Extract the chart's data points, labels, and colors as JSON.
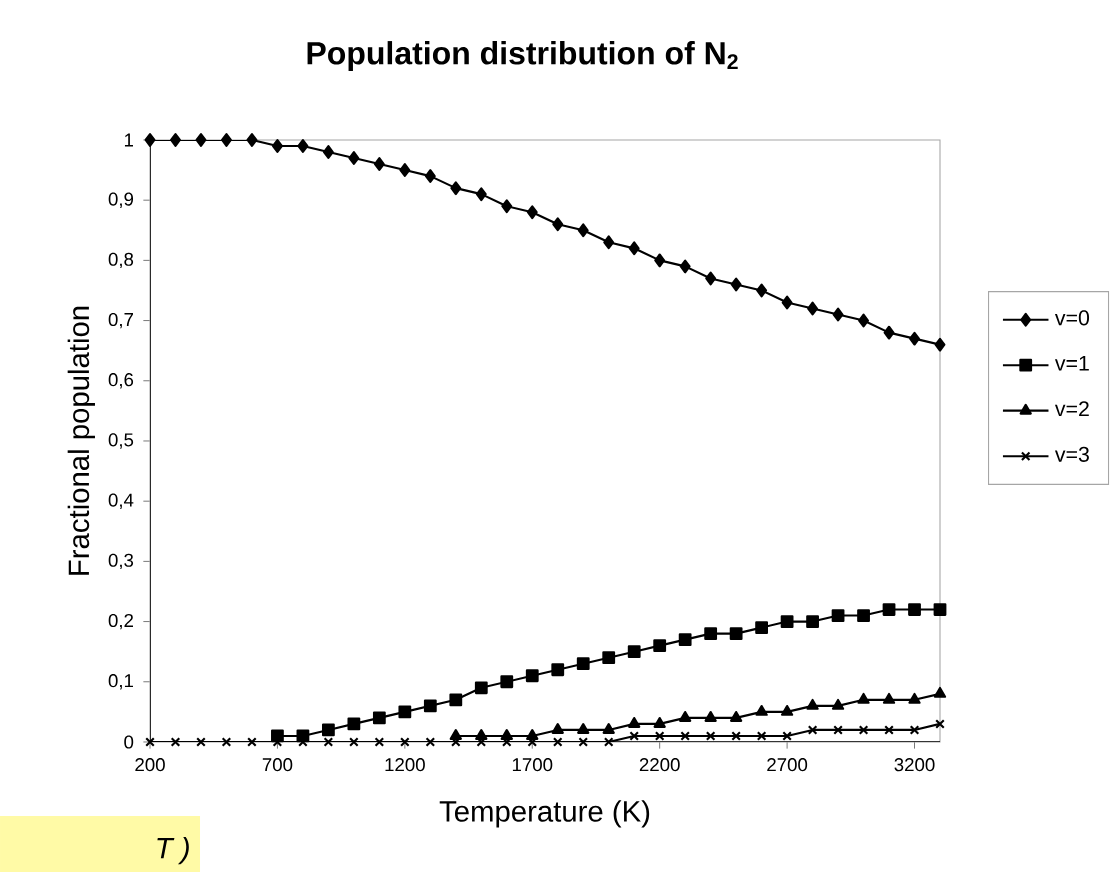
{
  "chart_data": {
    "type": "line",
    "title": "Population distribution of  N$_{2}$",
    "xlabel": "Temperature (K)",
    "ylabel": "Fractional population",
    "x": [
      200,
      300,
      400,
      500,
      600,
      700,
      800,
      900,
      1000,
      1100,
      1200,
      1300,
      1400,
      1500,
      1600,
      1700,
      1800,
      1900,
      2000,
      2100,
      2200,
      2300,
      2400,
      2500,
      2600,
      2700,
      2800,
      2900,
      3000,
      3100,
      3200,
      3300
    ],
    "series": [
      {
        "name": "v=0",
        "color": "#000000",
        "marker": "diamond",
        "values": [
          1.0,
          1.0,
          1.0,
          1.0,
          1.0,
          0.99,
          0.99,
          0.98,
          0.97,
          0.96,
          0.95,
          0.94,
          0.92,
          0.91,
          0.89,
          0.88,
          0.86,
          0.85,
          0.83,
          0.82,
          0.8,
          0.79,
          0.77,
          0.76,
          0.75,
          0.73,
          0.72,
          0.71,
          0.7,
          0.68,
          0.67,
          0.66
        ]
      },
      {
        "name": "v=1",
        "color": "#000000",
        "marker": "square",
        "values": [
          null,
          null,
          null,
          null,
          null,
          0.01,
          0.01,
          0.02,
          0.03,
          0.04,
          0.05,
          0.06,
          0.07,
          0.09,
          0.1,
          0.11,
          0.12,
          0.13,
          0.14,
          0.15,
          0.16,
          0.17,
          0.18,
          0.18,
          0.19,
          0.2,
          0.2,
          0.21,
          0.21,
          0.22,
          0.22,
          0.22
        ]
      },
      {
        "name": "v=2",
        "color": "#000000",
        "marker": "triangle",
        "values": [
          null,
          null,
          null,
          null,
          null,
          null,
          null,
          null,
          null,
          null,
          null,
          null,
          0.01,
          0.01,
          0.01,
          0.01,
          0.02,
          0.02,
          0.02,
          0.03,
          0.03,
          0.04,
          0.04,
          0.04,
          0.05,
          0.05,
          0.06,
          0.06,
          0.07,
          0.07,
          0.07,
          0.08
        ]
      },
      {
        "name": "v=3",
        "color": "#000000",
        "marker": "cross",
        "values": [
          0.0,
          0.0,
          0.0,
          0.0,
          0.0,
          0.0,
          0.0,
          0.0,
          0.0,
          0.0,
          0.0,
          0.0,
          0.0,
          0.0,
          0.0,
          0.0,
          0.0,
          0.0,
          0.0,
          0.01,
          0.01,
          0.01,
          0.01,
          0.01,
          0.01,
          0.01,
          0.02,
          0.02,
          0.02,
          0.02,
          0.02,
          0.03
        ]
      }
    ],
    "xlim": [
      200,
      3300
    ],
    "xticks": [
      200,
      700,
      1200,
      1700,
      2200,
      2700,
      3200
    ],
    "ylim": [
      0,
      1
    ],
    "yticks": [
      0,
      {
        "value": 0.1,
        "label": "0,1"
      },
      {
        "value": 0.2,
        "label": "0,2"
      },
      {
        "value": 0.3,
        "label": "0,3"
      },
      {
        "value": 0.4,
        "label": "0,4"
      },
      {
        "value": 0.5,
        "label": "0,5"
      },
      {
        "value": 0.6,
        "label": "0,6"
      },
      {
        "value": 0.7,
        "label": "0,7"
      },
      {
        "value": 0.8,
        "label": "0,8"
      },
      {
        "value": 0.9,
        "label": "0,9"
      },
      1
    ],
    "grid": false,
    "legend": "right",
    "line_style": "solid",
    "annotations": [
      "T )"
    ]
  }
}
